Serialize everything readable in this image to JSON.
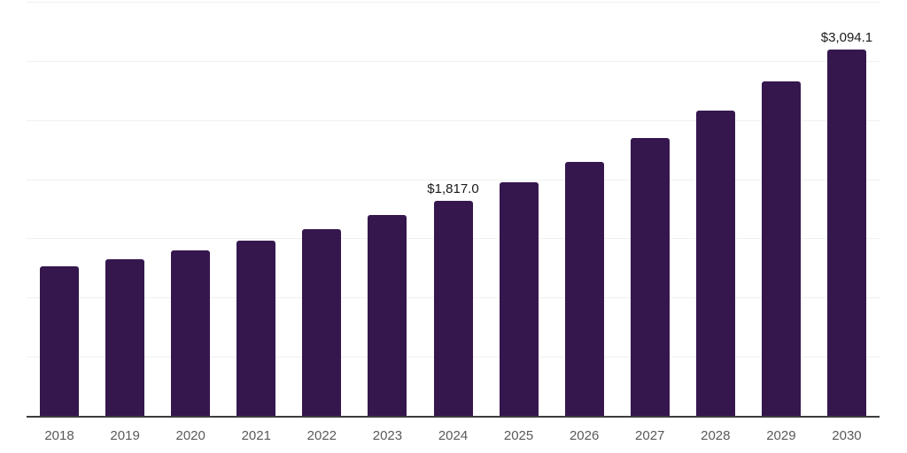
{
  "chart_data": {
    "type": "bar",
    "title": "",
    "xlabel": "",
    "ylabel": "",
    "categories": [
      "2018",
      "2019",
      "2020",
      "2021",
      "2022",
      "2023",
      "2024",
      "2025",
      "2026",
      "2027",
      "2028",
      "2029",
      "2030"
    ],
    "values": [
      1265,
      1322,
      1398,
      1480,
      1577,
      1697,
      1817.0,
      1975,
      2145,
      2349,
      2580,
      2827,
      3094.1
    ],
    "value_labels": [
      "",
      "",
      "",
      "",
      "",
      "",
      "$1,817.0",
      "",
      "",
      "",
      "",
      "",
      "$3,094.1"
    ],
    "ylim": [
      0,
      3500
    ],
    "gridline_interval": 500,
    "grid": true,
    "legend": false,
    "y_axis_labels_visible": false,
    "colors": {
      "bar": "#35174E",
      "axis_line": "#3d3d3d",
      "gridline": "#f0f0f0",
      "tick_label": "#595959",
      "data_label": "#1a1a1a",
      "background": "#ffffff"
    }
  }
}
